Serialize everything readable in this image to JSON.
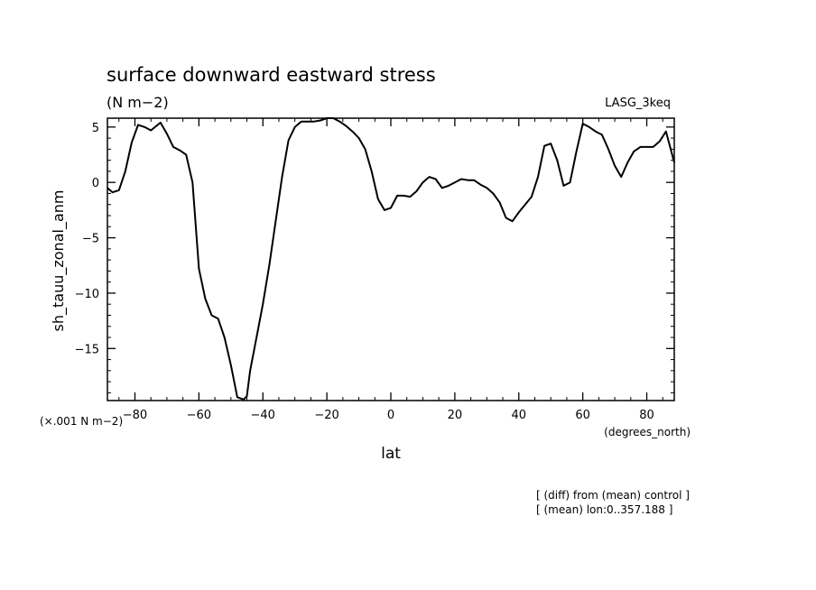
{
  "chart_data": {
    "type": "line",
    "title": "surface downward eastward stress",
    "units": "(N m−2)",
    "run_label": "LASG_3keq",
    "ylabel": "sh_tauu_zonal_anm",
    "yscale_note": "(×.001 N m−2)",
    "xlabel": "lat",
    "xunits": "(degrees_north)",
    "footnotes": [
      "[ (diff) from (mean) control ]",
      "[ (mean) lon:0..357.188 ]"
    ],
    "xlim": [
      -88.6,
      88.6
    ],
    "ylim": [
      -19.7,
      5.8
    ],
    "xticks": [
      -80,
      -60,
      -40,
      -20,
      0,
      20,
      40,
      60,
      80
    ],
    "yticks": [
      5,
      0,
      -5,
      -10,
      -15
    ],
    "series": [
      {
        "x": [
          -88.6,
          -87,
          -85,
          -83,
          -81,
          -79,
          -77,
          -75,
          -72,
          -70,
          -68,
          -66,
          -64,
          -62,
          -60,
          -58,
          -56,
          -54,
          -52,
          -50,
          -48,
          -46,
          -45,
          -44,
          -42,
          -40,
          -38,
          -36,
          -34,
          -32,
          -30,
          -28,
          -26,
          -24,
          -22,
          -20,
          -18,
          -16,
          -14,
          -12,
          -10,
          -8,
          -6,
          -4,
          -2,
          0,
          2,
          4,
          6,
          8,
          10,
          12,
          14,
          16,
          18,
          20,
          22,
          24,
          26,
          28,
          30,
          32,
          34,
          36,
          38,
          40,
          42,
          44,
          46,
          48,
          50,
          52,
          54,
          56,
          58,
          60,
          62,
          64,
          66,
          68,
          70,
          72,
          74,
          76,
          78,
          80,
          82,
          84,
          86,
          88.6
        ],
        "values": [
          -0.5,
          -0.9,
          -0.7,
          1.0,
          3.6,
          5.2,
          5.0,
          4.7,
          5.4,
          4.4,
          3.2,
          2.9,
          2.5,
          0,
          -7.8,
          -10.5,
          -12.0,
          -12.3,
          -14,
          -16.5,
          -19.4,
          -19.6,
          -19.3,
          -17.0,
          -14.0,
          -11.0,
          -7.5,
          -3.5,
          0.5,
          3.8,
          5.0,
          5.5,
          5.5,
          5.5,
          5.6,
          5.8,
          5.8,
          5.5,
          5.1,
          4.6,
          4.0,
          3.0,
          1.0,
          -1.5,
          -2.5,
          -2.3,
          -1.2,
          -1.2,
          -1.3,
          -0.8,
          0,
          0.5,
          0.3,
          -0.5,
          -0.3,
          0,
          0.3,
          0.2,
          0.2,
          -0.2,
          -0.5,
          -1.0,
          -1.8,
          -3.2,
          -3.5,
          -2.7,
          -2.0,
          -1.3,
          0.5,
          3.3,
          3.5,
          2.0,
          -0.3,
          0.0,
          2.8,
          5.3,
          5.0,
          4.6,
          4.3,
          3.0,
          1.5,
          0.5,
          1.8,
          2.8,
          3.2,
          3.2,
          3.2,
          3.7,
          4.6,
          1.8
        ]
      }
    ]
  }
}
